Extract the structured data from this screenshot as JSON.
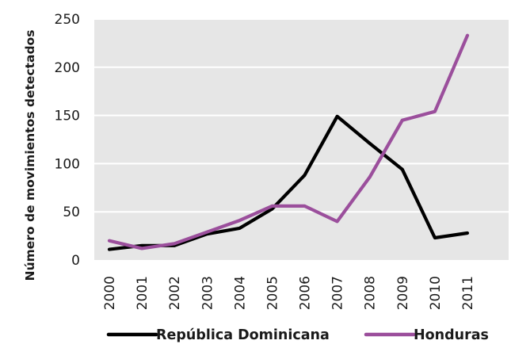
{
  "chart_data": {
    "type": "line",
    "title": "",
    "xlabel": "",
    "ylabel": "Número de movimientos detectados",
    "ylim": [
      0,
      250
    ],
    "yticks": [
      "0",
      "50",
      "100",
      "150",
      "200",
      "250"
    ],
    "x": [
      "2000",
      "2001",
      "2002",
      "2003",
      "2004",
      "2005",
      "2006",
      "2007",
      "2008",
      "2009",
      "2010",
      "2011"
    ],
    "grid": true,
    "legend_position": "bottom",
    "series": [
      {
        "name": "República Dominicana",
        "color": "#000000",
        "values": [
          11,
          15,
          15,
          27,
          33,
          53,
          88,
          149,
          121,
          94,
          23,
          28
        ]
      },
      {
        "name": "Honduras",
        "color": "#9b4f9c",
        "values": [
          20,
          12,
          17,
          29,
          41,
          56,
          56,
          40,
          86,
          145,
          154,
          233
        ]
      }
    ],
    "plot_background": "#e6e6e6",
    "grid_color": "#ffffff"
  }
}
